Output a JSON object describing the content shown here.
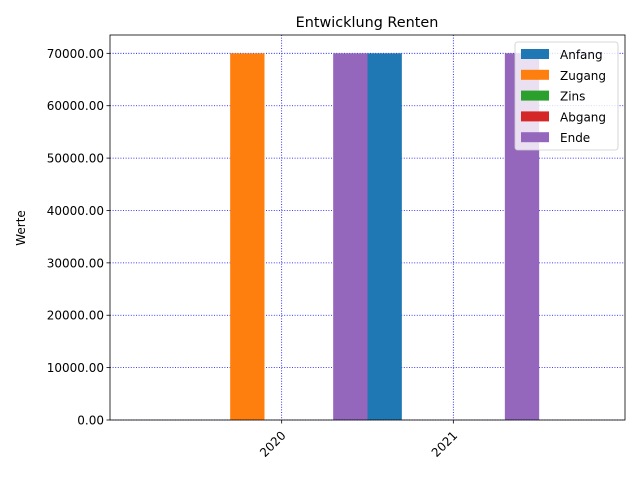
{
  "chart_data": {
    "type": "bar",
    "title": "Entwicklung Renten",
    "xlabel": "",
    "ylabel": "Werte",
    "categories": [
      "2020",
      "2021"
    ],
    "series": [
      {
        "name": "Anfang",
        "color": "#1f77b4",
        "values": [
          0,
          70000
        ]
      },
      {
        "name": "Zugang",
        "color": "#ff7f0e",
        "values": [
          70000,
          0
        ]
      },
      {
        "name": "Zins",
        "color": "#2ca02c",
        "values": [
          0,
          0
        ]
      },
      {
        "name": "Abgang",
        "color": "#d62728",
        "values": [
          0,
          0
        ]
      },
      {
        "name": "Ende",
        "color": "#9467bd",
        "values": [
          70000,
          70000
        ]
      }
    ],
    "ylim": [
      0,
      73500
    ],
    "y_ticks": [
      "0.00",
      "10000.00",
      "20000.00",
      "30000.00",
      "40000.00",
      "50000.00",
      "60000.00",
      "70000.00"
    ],
    "y_tick_values": [
      0,
      10000,
      20000,
      30000,
      40000,
      50000,
      60000,
      70000
    ],
    "grid": true,
    "grid_color": "#0000ff",
    "legend_position": "top-right",
    "x_tick_rotation": 45
  }
}
